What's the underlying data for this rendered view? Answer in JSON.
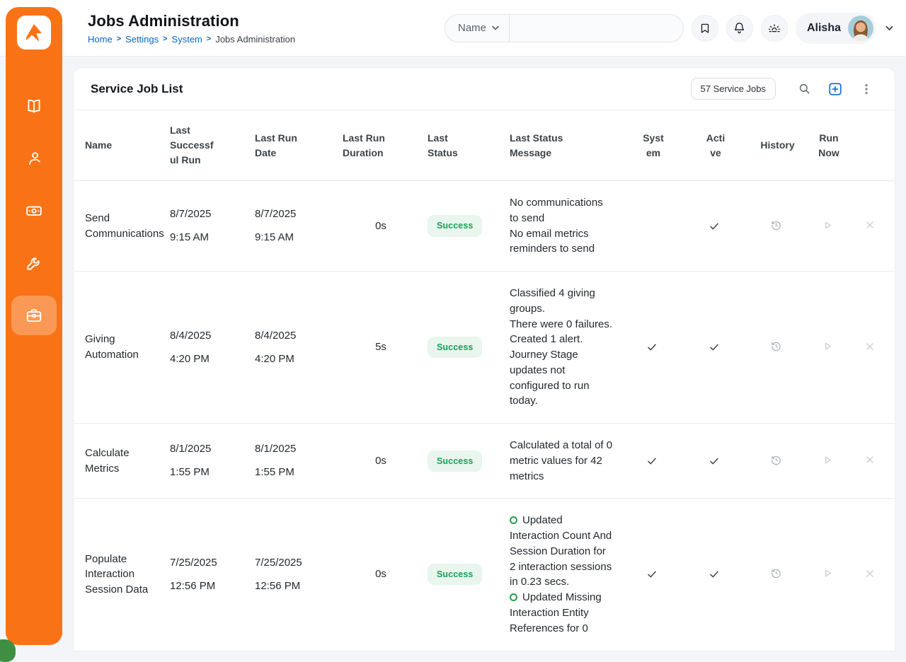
{
  "colors": {
    "brand_orange": "#f97316",
    "sidebar_active_bg": "#fa9a52",
    "link_blue": "#0b66c3",
    "accent_blue": "#1a6fe0",
    "success_green": "#18a058",
    "success_bg": "#e8f6ee"
  },
  "header": {
    "title": "Jobs Administration",
    "breadcrumbs": [
      {
        "label": "Home",
        "current": false
      },
      {
        "label": "Settings",
        "current": false
      },
      {
        "label": "System",
        "current": false
      },
      {
        "label": "Jobs Administration",
        "current": true
      }
    ],
    "search": {
      "filter_label": "Name",
      "filter_icon": "chevron-down-icon",
      "value": "",
      "placeholder": ""
    },
    "actions": [
      {
        "icon": "bookmark-icon"
      },
      {
        "icon": "bell-icon"
      },
      {
        "icon": "sunrise-icon"
      }
    ],
    "user": {
      "name": "Alisha",
      "avatar": "avatar-photo",
      "menu_icon": "chevron-down-icon"
    }
  },
  "sidebar": {
    "logo_icon": "rock-logo",
    "items": [
      {
        "icon": "book-open-icon",
        "active": false
      },
      {
        "icon": "person-icon",
        "active": false
      },
      {
        "icon": "money-bill-icon",
        "active": false
      },
      {
        "icon": "wrench-icon",
        "active": false
      },
      {
        "icon": "briefcase-icon",
        "active": true
      }
    ]
  },
  "panel": {
    "title": "Service Job List",
    "count_badge": "57 Service Jobs",
    "actions": [
      {
        "icon": "search-icon"
      },
      {
        "icon": "plus-square-icon"
      },
      {
        "icon": "kebab-menu-icon"
      }
    ]
  },
  "table": {
    "columns": [
      {
        "key": "name",
        "label": "Name"
      },
      {
        "key": "last-successful-run",
        "label": "Last Successful Run"
      },
      {
        "key": "last-run-date",
        "label": "Last Run Date"
      },
      {
        "key": "last-run-duration",
        "label": "Last Run Duration"
      },
      {
        "key": "last-status",
        "label": "Last Status"
      },
      {
        "key": "last-status-message",
        "label": "Last Status Message"
      },
      {
        "key": "system",
        "label": "System"
      },
      {
        "key": "active",
        "label": "Active"
      },
      {
        "key": "history",
        "label": "History"
      },
      {
        "key": "run-now",
        "label": "Run Now"
      },
      {
        "key": "delete",
        "label": ""
      }
    ],
    "row_actions": [
      {
        "icon": "history-icon",
        "label": "History"
      },
      {
        "icon": "play-icon",
        "label": "Run Now"
      },
      {
        "icon": "x-icon",
        "label": "Delete"
      }
    ],
    "rows": [
      {
        "name": "Send Communications",
        "last_successful_run": {
          "date": "8/7/2025",
          "time": "9:15 AM"
        },
        "last_run_date": {
          "date": "8/7/2025",
          "time": "9:15 AM"
        },
        "duration": "0s",
        "status": "Success",
        "message": [
          {
            "bullet": false,
            "text": "No communications to send"
          },
          {
            "bullet": false,
            "text": "No email metrics reminders to send"
          }
        ],
        "system": false,
        "active": true
      },
      {
        "name": "Giving Automation",
        "last_successful_run": {
          "date": "8/4/2025",
          "time": "4:20 PM"
        },
        "last_run_date": {
          "date": "8/4/2025",
          "time": "4:20 PM"
        },
        "duration": "5s",
        "status": "Success",
        "message": [
          {
            "bullet": false,
            "text": "Classified 4 giving groups."
          },
          {
            "bullet": false,
            "text": "There were 0 failures."
          },
          {
            "bullet": false,
            "text": "Created 1 alert."
          },
          {
            "bullet": false,
            "text": "Journey Stage updates not configured to run today."
          }
        ],
        "system": true,
        "active": true
      },
      {
        "name": "Calculate Metrics",
        "last_successful_run": {
          "date": "8/1/2025",
          "time": "1:55 PM"
        },
        "last_run_date": {
          "date": "8/1/2025",
          "time": "1:55 PM"
        },
        "duration": "0s",
        "status": "Success",
        "message": [
          {
            "bullet": false,
            "text": "Calculated a total of 0 metric values for 42 metrics"
          }
        ],
        "system": true,
        "active": true
      },
      {
        "name": "Populate Interaction Session Data",
        "last_successful_run": {
          "date": "7/25/2025",
          "time": "12:56 PM"
        },
        "last_run_date": {
          "date": "7/25/2025",
          "time": "12:56 PM"
        },
        "duration": "0s",
        "status": "Success",
        "message": [
          {
            "bullet": true,
            "text": "Updated Interaction Count And Session Duration for 2 interaction sessions in 0.23 secs."
          },
          {
            "bullet": true,
            "text": "Updated Missing Interaction Entity References for 0"
          }
        ],
        "system": true,
        "active": true
      }
    ]
  }
}
